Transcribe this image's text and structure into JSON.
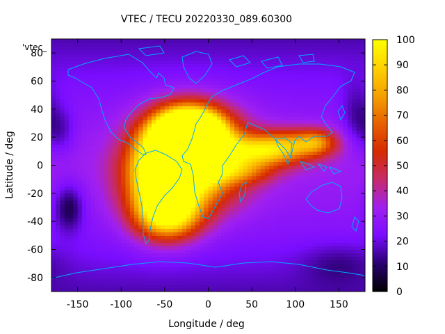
{
  "chart_data": {
    "type": "heatmap",
    "title": "VTEC / TECU 20220330_089.60300",
    "xlabel": "Longitude / deg",
    "ylabel": "Latitude / deg",
    "xlim": [
      -180,
      180
    ],
    "ylim": [
      -90,
      90
    ],
    "xticks": [
      -150,
      -100,
      -50,
      0,
      50,
      100,
      150
    ],
    "yticks": [
      -80,
      -60,
      -40,
      -20,
      0,
      20,
      40,
      60,
      80
    ],
    "colorbar": {
      "min": 0,
      "max": 100,
      "ticks": [
        0,
        10,
        20,
        30,
        40,
        50,
        60,
        70,
        80,
        90,
        100
      ]
    },
    "legend_entry": "'vtec_",
    "colors": {
      "coastline": "#00aaff",
      "palette": [
        "#000000",
        "#2a0070",
        "#7a0dff",
        "#a020f0",
        "#c72b6a",
        "#d62a00",
        "#e86000",
        "#f5a000",
        "#ffd200",
        "#ffff00"
      ]
    },
    "features": [
      {
        "lon": -25,
        "lat": 18,
        "value": 98,
        "sx": 26,
        "sy": 14
      },
      {
        "lon": -15,
        "lat": 5,
        "value": 80,
        "sx": 38,
        "sy": 22
      },
      {
        "lon": -55,
        "lat": -10,
        "value": 70,
        "sx": 28,
        "sy": 22
      },
      {
        "lon": -45,
        "lat": -35,
        "value": 55,
        "sx": 25,
        "sy": 12
      },
      {
        "lon": -20,
        "lat": 25,
        "value": 55,
        "sx": 25,
        "sy": 10
      },
      {
        "lon": 60,
        "lat": 10,
        "value": 45,
        "sx": 30,
        "sy": 8
      },
      {
        "lon": 100,
        "lat": 15,
        "value": 35,
        "sx": 30,
        "sy": 8
      },
      {
        "lon": 125,
        "lat": 17,
        "value": 25,
        "sx": 15,
        "sy": 6
      },
      {
        "lon": 40,
        "lat": -5,
        "value": 20,
        "sx": 25,
        "sy": 6
      },
      {
        "lon": -160,
        "lat": -30,
        "value": -20,
        "sx": 12,
        "sy": 12
      },
      {
        "lon": -170,
        "lat": 25,
        "value": -12,
        "sx": 12,
        "sy": 12
      },
      {
        "lon": 170,
        "lat": 35,
        "value": -12,
        "sx": 12,
        "sy": 16
      },
      {
        "lon": 150,
        "lat": -70,
        "value": -8,
        "sx": 30,
        "sy": 10
      }
    ],
    "background": {
      "base": 22,
      "equatorial_boost": 10,
      "polar_drop": 6
    }
  }
}
